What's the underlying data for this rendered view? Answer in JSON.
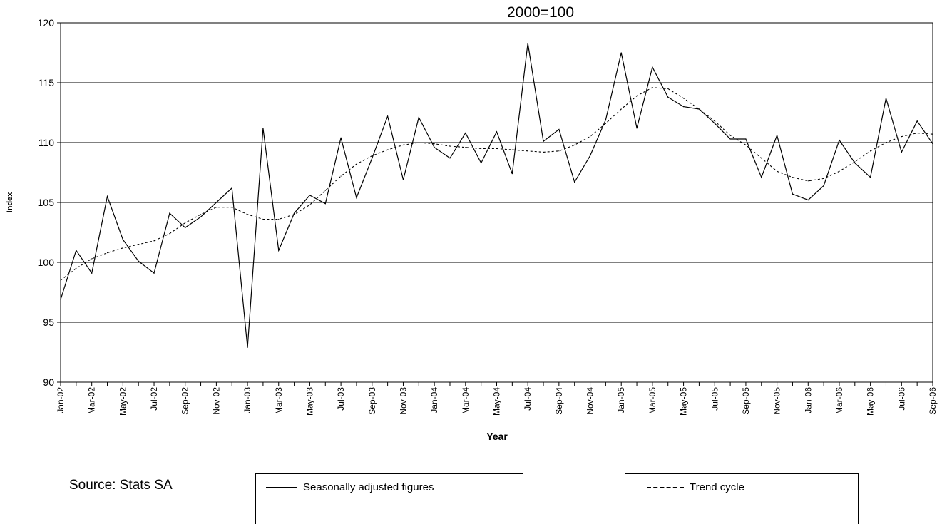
{
  "chart_data": {
    "type": "line",
    "title": "2000=100",
    "xlabel": "Year",
    "ylabel": "Index",
    "ylim": [
      90,
      120
    ],
    "yticks": [
      90,
      95,
      100,
      105,
      110,
      115,
      120
    ],
    "grid": "horizontal",
    "x": [
      "Jan-02",
      "Feb-02",
      "Mar-02",
      "Apr-02",
      "May-02",
      "Jun-02",
      "Jul-02",
      "Aug-02",
      "Sep-02",
      "Oct-02",
      "Nov-02",
      "Dec-02",
      "Jan-03",
      "Feb-03",
      "Mar-03",
      "Apr-03",
      "May-03",
      "Jun-03",
      "Jul-03",
      "Aug-03",
      "Sep-03",
      "Oct-03",
      "Nov-03",
      "Dec-03",
      "Jan-04",
      "Feb-04",
      "Mar-04",
      "Apr-04",
      "May-04",
      "Jun-04",
      "Jul-04",
      "Aug-04",
      "Sep-04",
      "Oct-04",
      "Nov-04",
      "Dec-04",
      "Jan-05",
      "Feb-05",
      "Mar-05",
      "Apr-05",
      "May-05",
      "Jun-05",
      "Jul-05",
      "Aug-05",
      "Sep-05",
      "Oct-05",
      "Nov-05",
      "Dec-05",
      "Jan-06",
      "Feb-06",
      "Mar-06",
      "Apr-06",
      "May-06",
      "Jun-06",
      "Jul-06",
      "Aug-06",
      "Sep-06"
    ],
    "xtick_labels": [
      "Jan-02",
      "Mar-02",
      "May-02",
      "Jul-02",
      "Sep-02",
      "Nov-02",
      "Jan-03",
      "Mar-03",
      "May-03",
      "Jul-03",
      "Sep-03",
      "Nov-03",
      "Jan-04",
      "Mar-04",
      "May-04",
      "Jul-04",
      "Sep-04",
      "Nov-04",
      "Jan-05",
      "Mar-05",
      "May-05",
      "Jul-05",
      "Sep-05",
      "Nov-05",
      "Jan-06",
      "Mar-06",
      "May-06",
      "Jul-06",
      "Sep-06"
    ],
    "series": [
      {
        "name": "Seasonally adjusted figures",
        "style": "solid",
        "color": "#000000",
        "values": [
          96.9,
          101.0,
          99.1,
          105.5,
          101.9,
          100.1,
          99.1,
          104.1,
          102.9,
          103.8,
          105.0,
          106.2,
          92.9,
          111.2,
          101.0,
          104.1,
          105.6,
          104.9,
          110.4,
          105.4,
          108.7,
          112.2,
          106.9,
          112.1,
          109.6,
          108.7,
          110.8,
          108.3,
          110.9,
          107.4,
          118.3,
          110.1,
          111.1,
          106.7,
          108.9,
          111.9,
          117.5,
          111.2,
          116.3,
          113.8,
          113.0,
          112.8,
          111.6,
          110.3,
          110.3,
          107.1,
          110.6,
          105.7,
          105.2,
          106.4,
          110.2,
          108.3,
          107.1,
          113.7,
          109.2,
          111.8,
          109.9
        ]
      },
      {
        "name": "Trend cycle",
        "style": "dashed",
        "color": "#000000",
        "values": [
          98.5,
          99.5,
          100.3,
          100.8,
          101.2,
          101.5,
          101.8,
          102.4,
          103.3,
          104.0,
          104.6,
          104.6,
          104.0,
          103.6,
          103.6,
          104.0,
          104.8,
          106.0,
          107.2,
          108.2,
          108.9,
          109.4,
          109.8,
          110.0,
          109.9,
          109.7,
          109.6,
          109.5,
          109.5,
          109.4,
          109.3,
          109.2,
          109.3,
          109.8,
          110.5,
          111.6,
          112.8,
          113.9,
          114.6,
          114.5,
          113.7,
          112.8,
          111.8,
          110.6,
          109.8,
          108.7,
          107.6,
          107.1,
          106.8,
          107.0,
          107.6,
          108.4,
          109.3,
          110.0,
          110.5,
          110.8,
          110.7
        ]
      }
    ]
  },
  "legend": {
    "series1_label": "Seasonally adjusted figures",
    "series2_label": "Trend cycle"
  },
  "source": "Source: Stats SA"
}
